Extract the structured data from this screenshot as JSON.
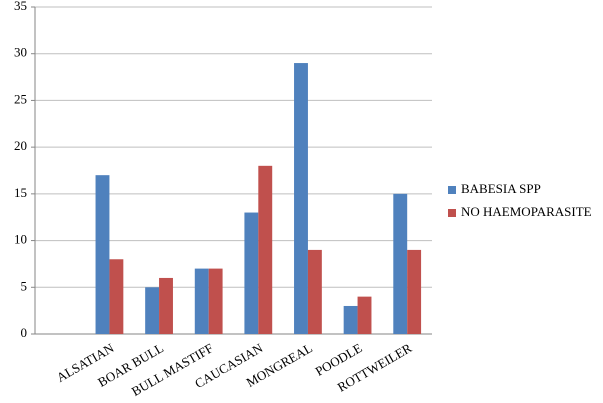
{
  "chart_data": {
    "type": "bar",
    "categories": [
      null,
      "ALSATIAN",
      "BOAR BULL",
      "BULL MASTIFF",
      "CAUCASIAN",
      "MONGREAL",
      "POODLE",
      "ROTTWEILER"
    ],
    "series": [
      {
        "name": "BABESIA SPP",
        "color": "#4f81bd",
        "values": [
          null,
          17,
          5,
          7,
          13,
          29,
          3,
          15
        ]
      },
      {
        "name": "NO HAEMOPARASITE",
        "color": "#c0504d",
        "values": [
          null,
          8,
          6,
          7,
          18,
          9,
          4,
          9
        ]
      }
    ],
    "ylim": [
      0,
      35
    ],
    "yticks": [
      0,
      5,
      10,
      15,
      20,
      25,
      30,
      35
    ],
    "grid": true,
    "legend": "right"
  }
}
